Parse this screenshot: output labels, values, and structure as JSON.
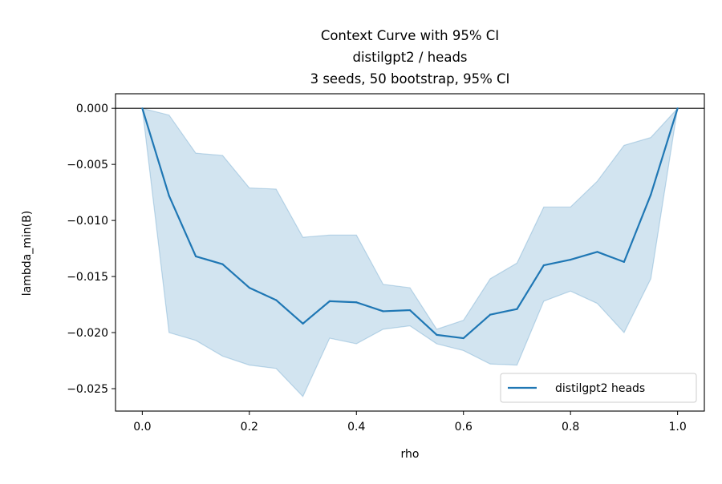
{
  "chart_data": {
    "type": "line",
    "title_lines": [
      "Context Curve with 95% CI",
      "distilgpt2 / heads",
      "3 seeds, 50 bootstrap, 95% CI"
    ],
    "xlabel": "rho",
    "ylabel": "lambda_min(B)",
    "xlim": [
      -0.05,
      1.05
    ],
    "ylim": [
      -0.027,
      0.0013
    ],
    "x_ticks": [
      0.0,
      0.2,
      0.4,
      0.6,
      0.8,
      1.0
    ],
    "x_tick_labels": [
      "0.0",
      "0.2",
      "0.4",
      "0.6",
      "0.8",
      "1.0"
    ],
    "y_ticks": [
      0.0,
      -0.005,
      -0.01,
      -0.015,
      -0.02,
      -0.025
    ],
    "y_tick_labels": [
      "0.000",
      "−0.005",
      "−0.010",
      "−0.015",
      "−0.020",
      "−0.025"
    ],
    "grid": false,
    "reference_line_y": 0.0,
    "legend_position": "lower-right",
    "series": [
      {
        "name": "distilgpt2 heads",
        "color": "#1f77b4",
        "x": [
          0.0,
          0.05,
          0.1,
          0.15,
          0.2,
          0.25,
          0.3,
          0.35,
          0.4,
          0.45,
          0.5,
          0.55,
          0.6,
          0.65,
          0.7,
          0.75,
          0.8,
          0.85,
          0.9,
          0.95,
          1.0
        ],
        "y": [
          0.0,
          -0.0078,
          -0.0132,
          -0.0139,
          -0.016,
          -0.0171,
          -0.0192,
          -0.0172,
          -0.0173,
          -0.0181,
          -0.018,
          -0.0202,
          -0.0205,
          -0.0184,
          -0.0179,
          -0.014,
          -0.0135,
          -0.0128,
          -0.0137,
          -0.0077,
          0.0
        ],
        "ci_upper": [
          0.0,
          -0.0006,
          -0.004,
          -0.0042,
          -0.0071,
          -0.0072,
          -0.0115,
          -0.0113,
          -0.0113,
          -0.0157,
          -0.016,
          -0.0197,
          -0.0189,
          -0.0152,
          -0.0138,
          -0.0088,
          -0.0088,
          -0.0065,
          -0.0033,
          -0.0026,
          0.0
        ],
        "ci_lower": [
          0.0,
          -0.02,
          -0.0207,
          -0.0221,
          -0.0229,
          -0.0232,
          -0.0257,
          -0.0205,
          -0.021,
          -0.0197,
          -0.0194,
          -0.021,
          -0.0216,
          -0.0228,
          -0.0229,
          -0.0172,
          -0.0163,
          -0.0174,
          -0.02,
          -0.0152,
          0.0
        ]
      }
    ]
  }
}
